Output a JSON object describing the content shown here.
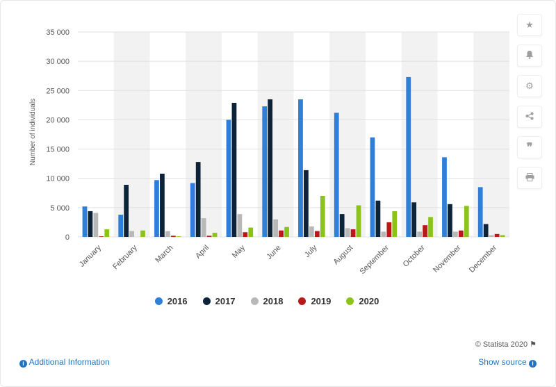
{
  "chart_data": {
    "type": "bar",
    "ylabel": "Number of individuals",
    "xlabel": "",
    "ylim": [
      0,
      35000
    ],
    "yticks": [
      0,
      5000,
      10000,
      15000,
      20000,
      25000,
      30000,
      35000
    ],
    "ytick_labels": [
      "0",
      "5 000",
      "10 000",
      "15 000",
      "20 000",
      "25 000",
      "30 000",
      "35 000"
    ],
    "grid": true,
    "legend_position": "bottom",
    "categories": [
      "January",
      "February",
      "March",
      "April",
      "May",
      "June",
      "July",
      "August",
      "September",
      "October",
      "November",
      "December"
    ],
    "series": [
      {
        "name": "2016",
        "color": "#2f7ed8",
        "values": [
          5200,
          3800,
          9700,
          9200,
          20000,
          22300,
          23500,
          21200,
          17000,
          27300,
          13600,
          8500
        ]
      },
      {
        "name": "2017",
        "color": "#0d233a",
        "values": [
          4400,
          8900,
          10800,
          12800,
          22900,
          23500,
          11400,
          3900,
          6200,
          5900,
          5600,
          2200
        ]
      },
      {
        "name": "2018",
        "color": "#b8b8b8",
        "values": [
          4100,
          1000,
          1000,
          3200,
          3900,
          3000,
          1800,
          1500,
          900,
          900,
          900,
          300
        ]
      },
      {
        "name": "2019",
        "color": "#b8191b",
        "values": [
          100,
          0,
          200,
          200,
          800,
          1100,
          1000,
          1300,
          2500,
          2000,
          1100,
          500
        ]
      },
      {
        "name": "2020",
        "color": "#8bc31a",
        "values": [
          1300,
          1100,
          100,
          700,
          1600,
          1700,
          7000,
          5400,
          4400,
          3400,
          5300,
          300
        ]
      }
    ]
  },
  "credit": "© Statista 2020",
  "footer": {
    "info_label": "Additional Information",
    "source_label": "Show source"
  },
  "sidebar_icons": [
    "star-icon",
    "bell-icon",
    "gear-icon",
    "share-icon",
    "quote-icon",
    "print-icon"
  ]
}
